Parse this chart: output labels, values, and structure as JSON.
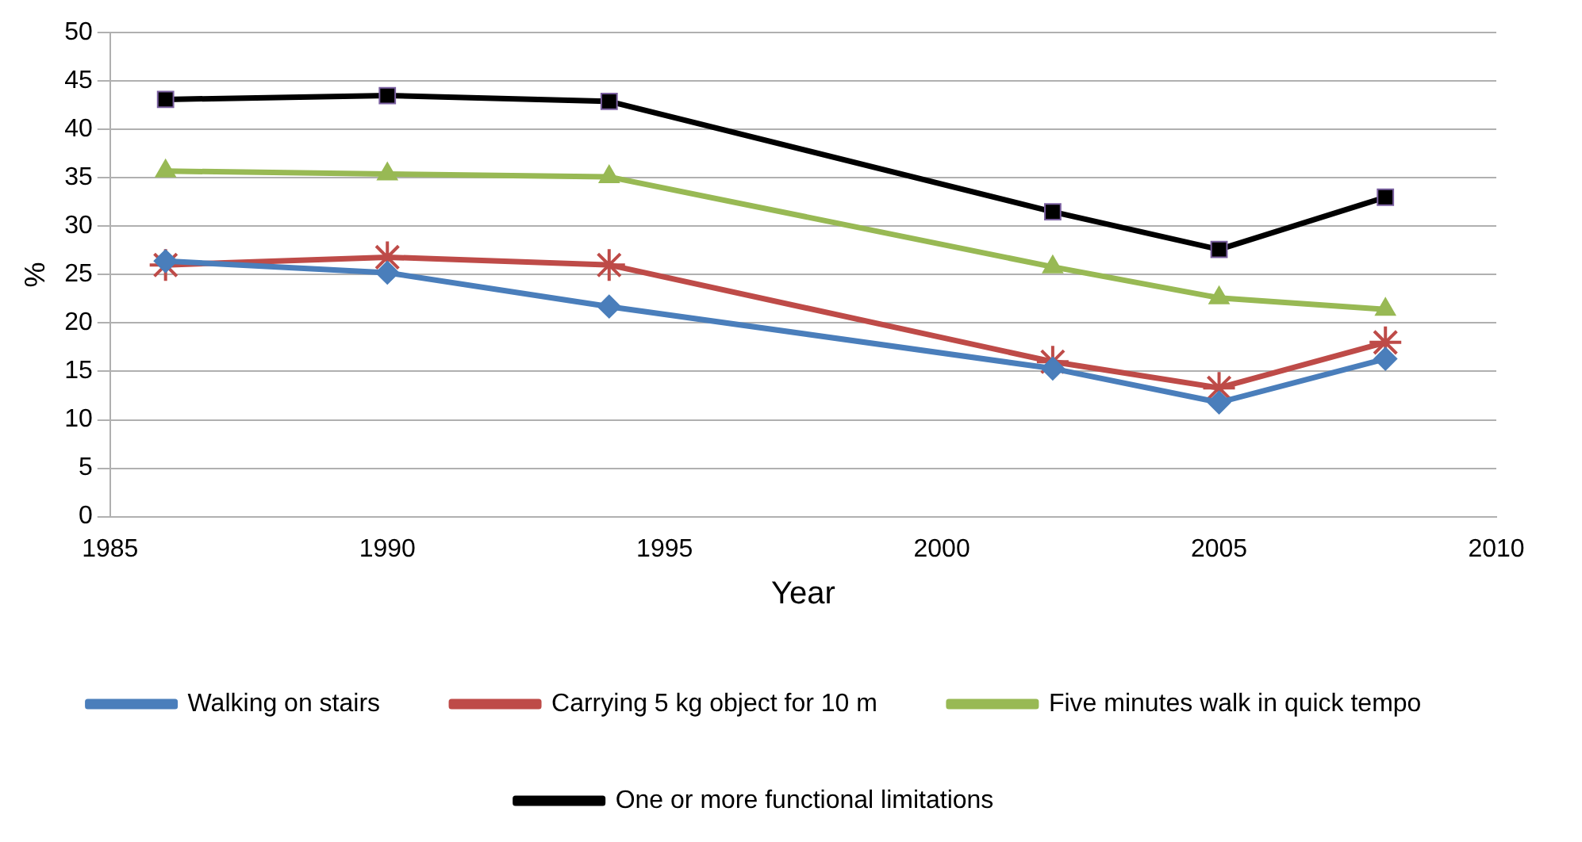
{
  "chart_data": {
    "type": "line",
    "xlabel": "Year",
    "ylabel": "%",
    "x": [
      1986,
      1990,
      1994,
      2002,
      2005,
      2008
    ],
    "xlim": [
      1985,
      2010
    ],
    "xticks": [
      1985,
      1990,
      1995,
      2000,
      2005,
      2010
    ],
    "ylim": [
      0,
      50
    ],
    "yticks": [
      0,
      5,
      10,
      15,
      20,
      25,
      30,
      35,
      40,
      45,
      50
    ],
    "grid": "y",
    "legend": "bottom",
    "series": [
      {
        "name": "Walking on stairs",
        "color": "#4a7ebb",
        "marker": "diamond",
        "values": [
          26.4,
          25.2,
          21.7,
          15.3,
          11.8,
          16.3
        ]
      },
      {
        "name": "Carrying 5 kg object for 10 m",
        "color": "#be4b48",
        "marker": "cross",
        "values": [
          26.0,
          26.8,
          26.0,
          16.0,
          13.3,
          18.0
        ]
      },
      {
        "name": "Five minutes walk in quick tempo",
        "color": "#98b954",
        "marker": "triangle",
        "values": [
          35.7,
          35.4,
          35.1,
          25.8,
          22.6,
          21.4
        ]
      },
      {
        "name": "One or more functional limitations",
        "color": "#000000",
        "marker": "square",
        "values": [
          43.1,
          43.5,
          42.9,
          31.5,
          27.6,
          33.0
        ]
      }
    ]
  }
}
